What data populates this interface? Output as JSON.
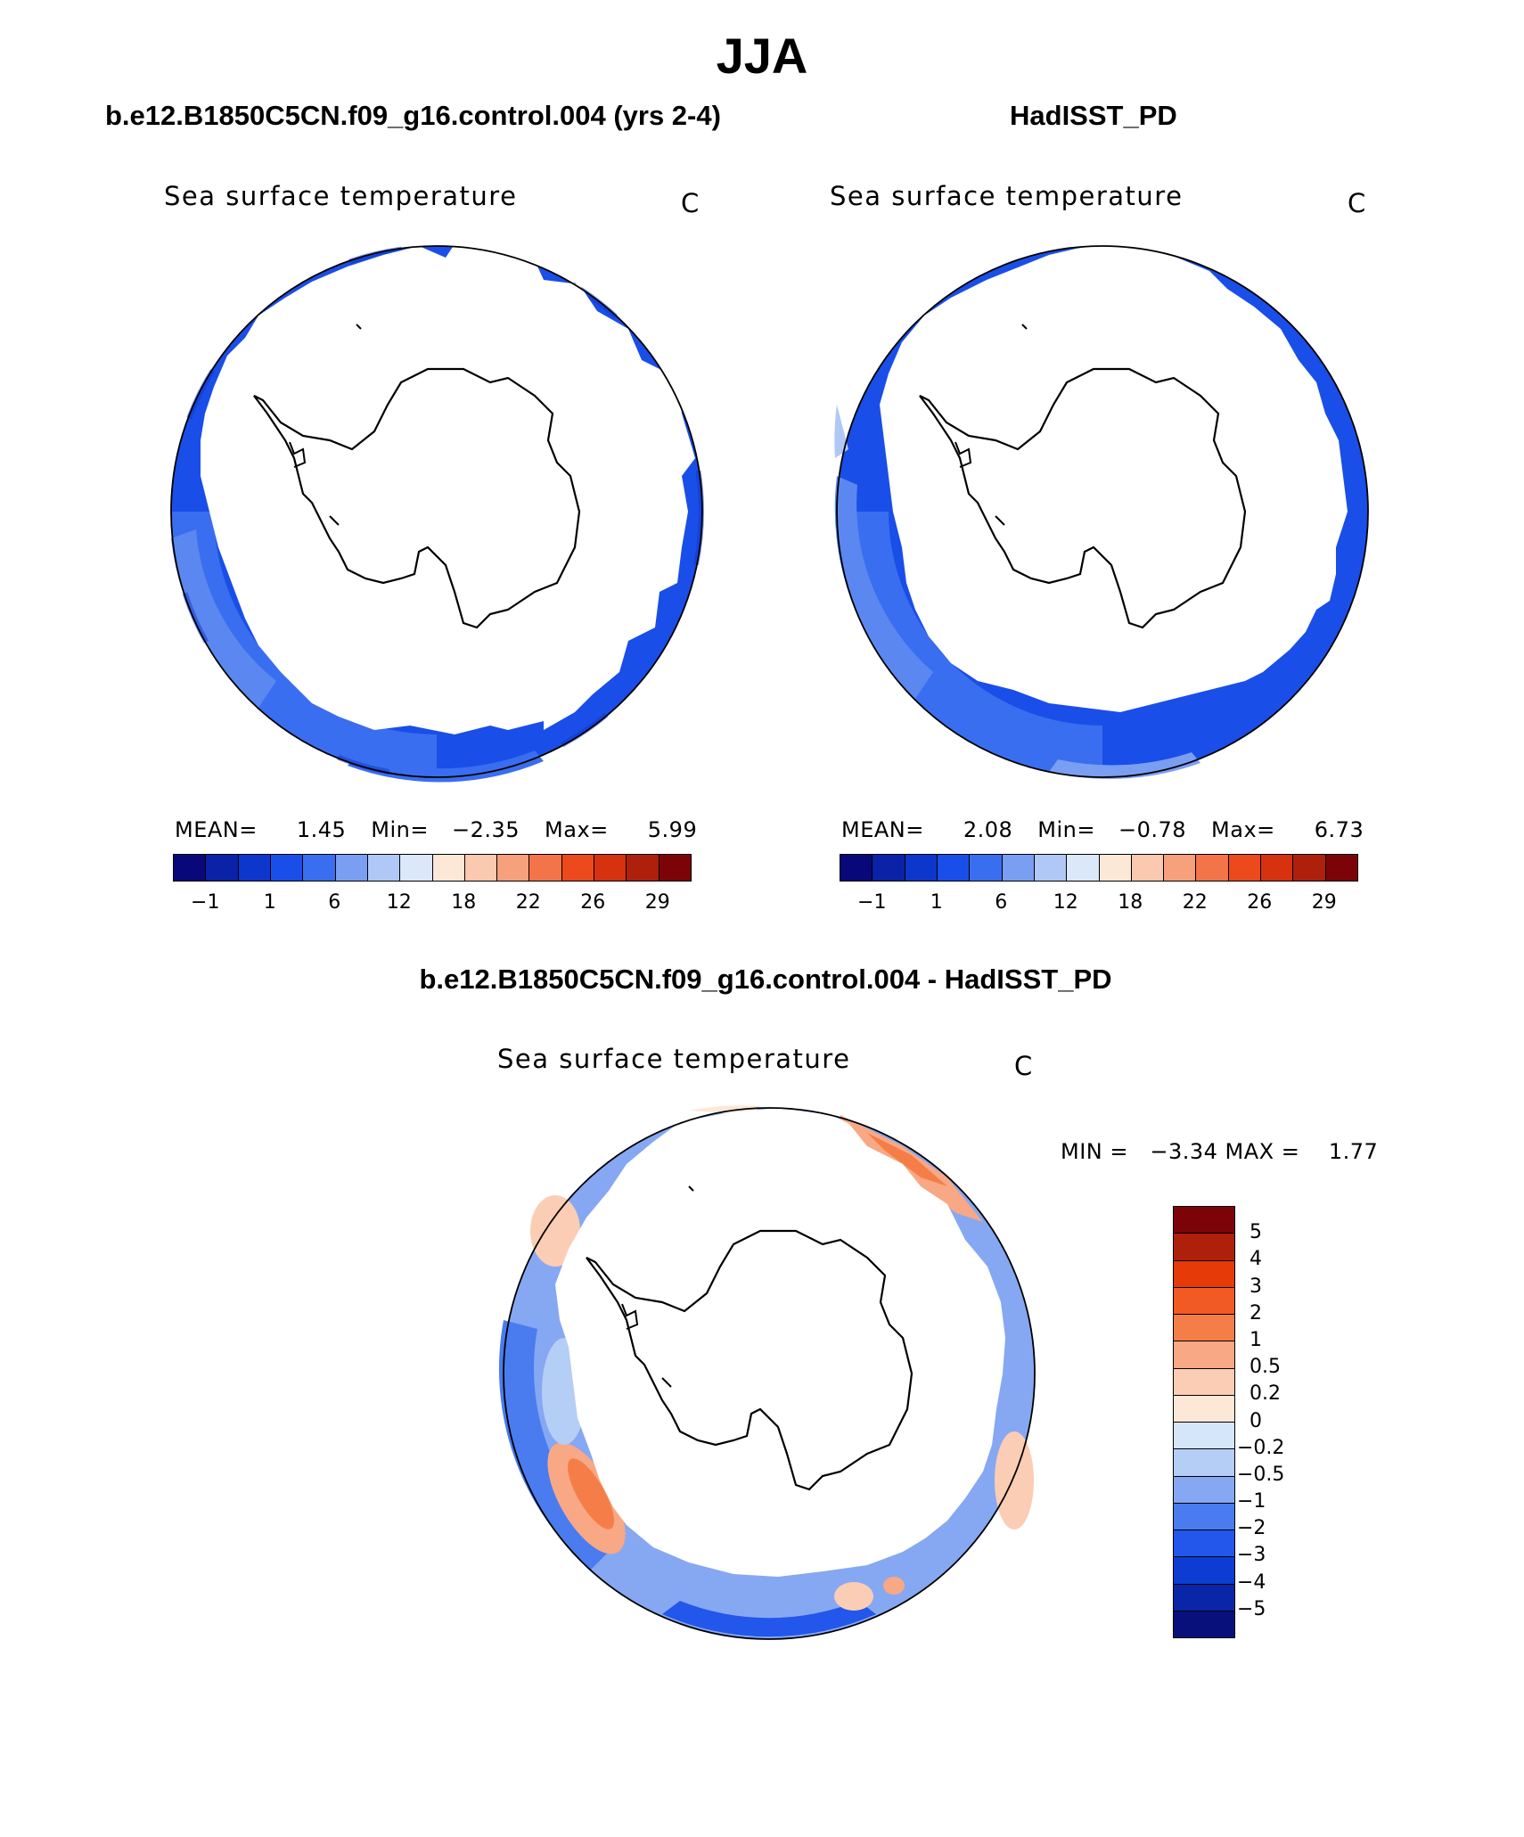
{
  "title": "JJA",
  "panels": [
    {
      "title": "b.e12.B1850C5CN.f09_g16.control.004 (yrs 2-4)",
      "variable": "Sea surface temperature",
      "units": "C",
      "stats": {
        "mean_label": "MEAN=",
        "mean": "1.45",
        "min_label": "Min=",
        "min": "−2.35",
        "max_label": "Max=",
        "max": "5.99"
      },
      "colorbar_ticks": [
        "−1",
        "1",
        "6",
        "12",
        "18",
        "22",
        "26",
        "29"
      ]
    },
    {
      "title": "HadISST_PD",
      "variable": "Sea surface temperature",
      "units": "C",
      "stats": {
        "mean_label": "MEAN=",
        "mean": "2.08",
        "min_label": "Min=",
        "min": "−0.78",
        "max_label": "Max=",
        "max": "6.73"
      },
      "colorbar_ticks": [
        "−1",
        "1",
        "6",
        "12",
        "18",
        "22",
        "26",
        "29"
      ]
    }
  ],
  "diff_panel": {
    "title": "b.e12.B1850C5CN.f09_g16.control.004 - HadISST_PD",
    "variable": "Sea surface temperature",
    "units": "C",
    "minmax": "MIN =   −3.34 MAX =    1.77",
    "colorbar_ticks": [
      "5",
      "4",
      "3",
      "2",
      "1",
      "0.5",
      "0.2",
      "0",
      "−0.2",
      "−0.5",
      "−1",
      "−2",
      "−3",
      "−4",
      "−5"
    ]
  },
  "colors": {
    "sst_scale": [
      "#08087a",
      "#0a22a8",
      "#0c36cc",
      "#1a4ee8",
      "#3a6ef0",
      "#7a9ef2",
      "#b0c8f6",
      "#dae8fa",
      "#fde8d8",
      "#fbc8b0",
      "#f6a07c",
      "#f27448",
      "#ec4a1c",
      "#d63210",
      "#ae200c",
      "#7c0408"
    ],
    "diff_scale": [
      "#7c0408",
      "#ae200c",
      "#e63a08",
      "#f25a24",
      "#f57e48",
      "#f8a884",
      "#fbcdb4",
      "#fde8d8",
      "#d6e6fa",
      "#b4cef6",
      "#86a8f2",
      "#4a7cf0",
      "#2356ea",
      "#0c3cd2",
      "#0a26a8",
      "#08107c"
    ]
  }
}
